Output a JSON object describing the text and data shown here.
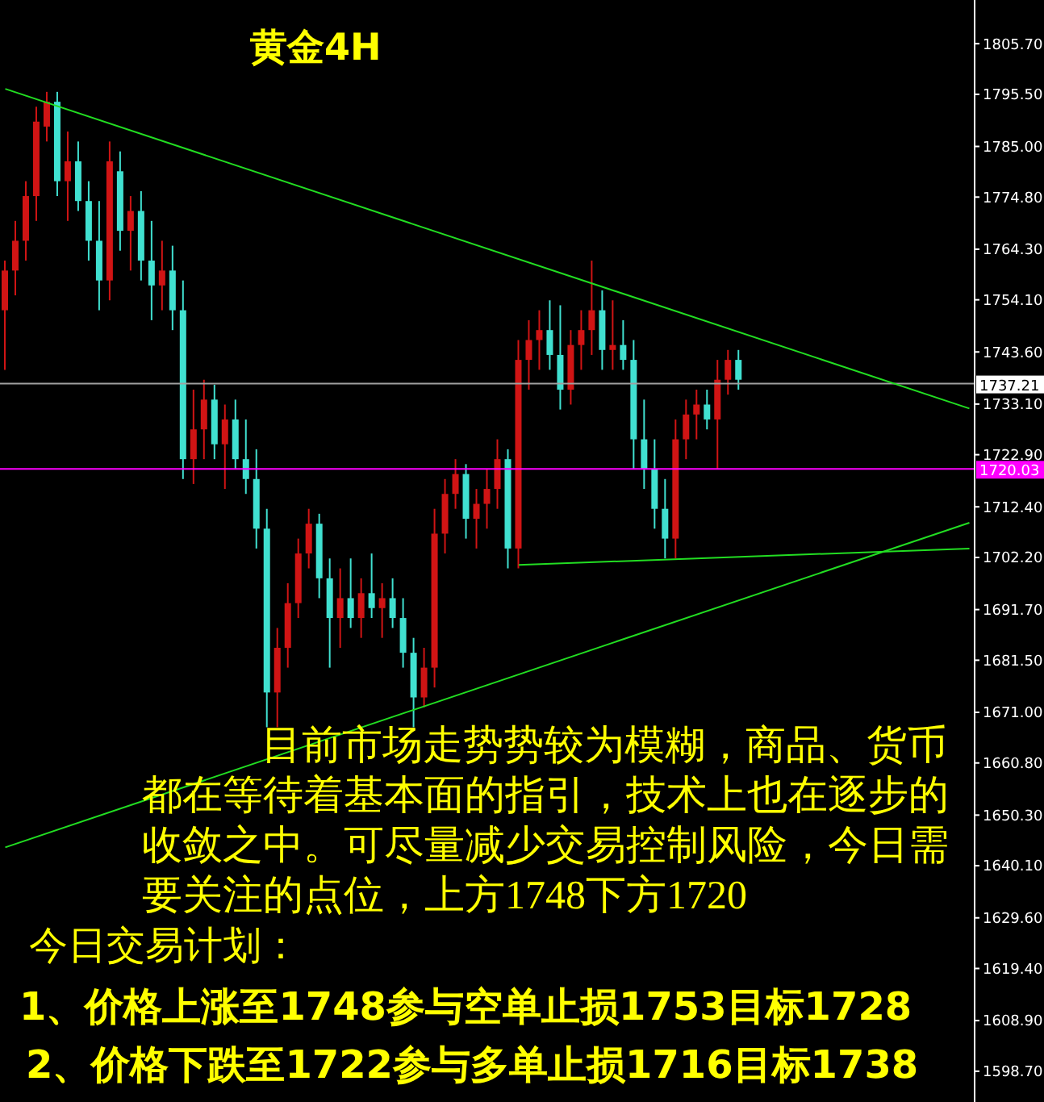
{
  "chart_data": {
    "type": "candlestick",
    "title": "黄金4H",
    "categories": [
      null,
      null,
      null,
      null,
      null,
      null,
      null,
      null,
      null,
      null,
      null,
      null,
      null,
      null,
      null,
      null,
      null,
      null,
      null,
      null,
      null,
      null,
      null,
      null,
      null,
      null,
      null,
      null,
      null,
      null,
      null,
      null,
      null,
      null,
      null,
      null,
      null,
      null,
      null,
      null,
      null,
      null,
      null,
      null,
      null,
      null,
      null,
      null,
      null,
      null,
      null,
      null,
      null,
      null,
      null,
      null,
      null,
      null,
      null,
      null,
      null,
      null,
      null,
      null,
      null,
      null,
      null,
      null,
      null,
      null,
      null,
      null,
      null,
      null,
      null,
      null,
      null,
      null,
      null,
      null,
      null,
      null,
      null,
      null,
      null,
      null,
      null,
      null,
      null,
      null,
      null,
      null,
      null
    ],
    "ohlc": [
      [
        1752,
        1762,
        1740,
        1760
      ],
      [
        1760,
        1770,
        1755,
        1766
      ],
      [
        1766,
        1778,
        1762,
        1775
      ],
      [
        1775,
        1793,
        1770,
        1790
      ],
      [
        1789,
        1796,
        1786,
        1794
      ],
      [
        1794,
        1796,
        1775,
        1778
      ],
      [
        1778,
        1788,
        1770,
        1782
      ],
      [
        1782,
        1786,
        1772,
        1774
      ],
      [
        1774,
        1778,
        1762,
        1766
      ],
      [
        1766,
        1774,
        1752,
        1758
      ],
      [
        1758,
        1786,
        1754,
        1782
      ],
      [
        1780,
        1784,
        1764,
        1768
      ],
      [
        1768,
        1775,
        1760,
        1772
      ],
      [
        1772,
        1776,
        1758,
        1762
      ],
      [
        1762,
        1770,
        1750,
        1757
      ],
      [
        1757,
        1766,
        1752,
        1760
      ],
      [
        1760,
        1765,
        1748,
        1752
      ],
      [
        1752,
        1758,
        1718,
        1722
      ],
      [
        1722,
        1736,
        1717,
        1728
      ],
      [
        1728,
        1738,
        1722,
        1734
      ],
      [
        1734,
        1737,
        1722,
        1725
      ],
      [
        1725,
        1733,
        1716,
        1730
      ],
      [
        1730,
        1734,
        1720,
        1722
      ],
      [
        1722,
        1730,
        1715,
        1718
      ],
      [
        1718,
        1724,
        1704,
        1708
      ],
      [
        1708,
        1712,
        1668,
        1675
      ],
      [
        1675,
        1688,
        1668,
        1684
      ],
      [
        1684,
        1697,
        1680,
        1693
      ],
      [
        1693,
        1706,
        1690,
        1703
      ],
      [
        1703,
        1712,
        1700,
        1709
      ],
      [
        1709,
        1711,
        1694,
        1698
      ],
      [
        1698,
        1702,
        1680,
        1690
      ],
      [
        1690,
        1700,
        1684,
        1694
      ],
      [
        1694,
        1702,
        1688,
        1690
      ],
      [
        1690,
        1698,
        1686,
        1695
      ],
      [
        1695,
        1703,
        1690,
        1692
      ],
      [
        1692,
        1697,
        1686,
        1694
      ],
      [
        1694,
        1698,
        1688,
        1690
      ],
      [
        1690,
        1694,
        1680,
        1683
      ],
      [
        1683,
        1686,
        1668,
        1674
      ],
      [
        1674,
        1684,
        1672,
        1680
      ],
      [
        1680,
        1712,
        1676,
        1707
      ],
      [
        1707,
        1718,
        1703,
        1715
      ],
      [
        1715,
        1722,
        1712,
        1719
      ],
      [
        1719,
        1721,
        1706,
        1710
      ],
      [
        1710,
        1716,
        1704,
        1713
      ],
      [
        1713,
        1720,
        1708,
        1716
      ],
      [
        1716,
        1726,
        1712,
        1722
      ],
      [
        1722,
        1724,
        1700,
        1704
      ],
      [
        1704,
        1746,
        1700,
        1742
      ],
      [
        1742,
        1750,
        1736,
        1746
      ],
      [
        1746,
        1752,
        1740,
        1748
      ],
      [
        1748,
        1754,
        1740,
        1743
      ],
      [
        1743,
        1753,
        1732,
        1736
      ],
      [
        1736,
        1748,
        1733,
        1745
      ],
      [
        1745,
        1752,
        1740,
        1748
      ],
      [
        1748,
        1762,
        1743,
        1752
      ],
      [
        1752,
        1756,
        1740,
        1744
      ],
      [
        1744,
        1754,
        1740,
        1745
      ],
      [
        1745,
        1750,
        1740,
        1742
      ],
      [
        1742,
        1746,
        1720,
        1726
      ],
      [
        1726,
        1734,
        1716,
        1720
      ],
      [
        1720,
        1726,
        1708,
        1712
      ],
      [
        1712,
        1718,
        1702,
        1706
      ],
      [
        1706,
        1730,
        1702,
        1726
      ],
      [
        1726,
        1734,
        1722,
        1731
      ],
      [
        1731,
        1736,
        1726,
        1733
      ],
      [
        1733,
        1736,
        1728,
        1730
      ],
      [
        1730,
        1742,
        1720,
        1738
      ],
      [
        1738,
        1744,
        1735,
        1742
      ],
      [
        1742,
        1744,
        1736,
        1738
      ],
      null,
      null,
      null,
      null,
      null,
      null,
      null,
      null,
      null,
      null,
      null,
      null,
      null,
      null,
      null,
      null,
      null,
      null,
      null,
      null,
      null,
      null
    ],
    "colors": [
      "#d01414",
      "#d01414",
      "#d01414",
      "#d01414",
      "#d01414",
      "#40e0d0",
      "#d01414",
      "#40e0d0",
      "#40e0d0",
      "#40e0d0",
      "#d01414",
      "#40e0d0",
      "#d01414",
      "#40e0d0",
      "#40e0d0",
      "#d01414",
      "#40e0d0",
      "#40e0d0",
      "#d01414",
      "#d01414",
      "#40e0d0",
      "#d01414",
      "#40e0d0",
      "#40e0d0",
      "#40e0d0",
      "#40e0d0",
      "#d01414",
      "#d01414",
      "#d01414",
      "#d01414",
      "#40e0d0",
      "#40e0d0",
      "#d01414",
      "#40e0d0",
      "#d01414",
      "#40e0d0",
      "#d01414",
      "#40e0d0",
      "#40e0d0",
      "#40e0d0",
      "#d01414",
      "#d01414",
      "#d01414",
      "#d01414",
      "#40e0d0",
      "#d01414",
      "#d01414",
      "#d01414",
      "#40e0d0",
      "#d01414",
      "#d01414",
      "#d01414",
      "#40e0d0",
      "#40e0d0",
      "#d01414",
      "#d01414",
      "#d01414",
      "#40e0d0",
      "#d01414",
      "#40e0d0",
      "#40e0d0",
      "#40e0d0",
      "#40e0d0",
      "#40e0d0",
      "#d01414",
      "#d01414",
      "#d01414",
      "#40e0d0",
      "#d01414",
      "#d01414",
      "#40e0d0",
      null,
      null,
      null,
      null,
      null,
      null,
      null,
      null,
      null,
      null,
      null,
      null,
      null,
      null,
      null,
      null,
      null,
      null,
      null,
      null,
      null,
      null
    ],
    "series": [
      {
        "type": "line",
        "values": [
          1796.6,
          null,
          null,
          null,
          null,
          null,
          null,
          null,
          null,
          null,
          null,
          null,
          null,
          null,
          null,
          null,
          null,
          null,
          null,
          null,
          null,
          null,
          null,
          null,
          null,
          null,
          null,
          null,
          null,
          null,
          null,
          null,
          null,
          null,
          null,
          null,
          null,
          null,
          null,
          null,
          null,
          null,
          null,
          null,
          null,
          null,
          null,
          null,
          null,
          null,
          null,
          null,
          null,
          null,
          null,
          null,
          null,
          null,
          null,
          null,
          null,
          null,
          null,
          null,
          null,
          null,
          null,
          null,
          null,
          null,
          null,
          null,
          null,
          null,
          null,
          null,
          null,
          null,
          null,
          null,
          null,
          null,
          null,
          null,
          null,
          null,
          null,
          null,
          null,
          null,
          null,
          null,
          1732.2
        ],
        "color": "#22dd22"
      },
      {
        "type": "line",
        "values": [
          1643.8,
          null,
          null,
          null,
          null,
          null,
          null,
          null,
          null,
          null,
          null,
          null,
          null,
          null,
          null,
          null,
          null,
          null,
          null,
          null,
          null,
          null,
          null,
          null,
          null,
          null,
          null,
          null,
          null,
          null,
          null,
          null,
          null,
          null,
          null,
          null,
          null,
          null,
          null,
          null,
          null,
          null,
          null,
          null,
          null,
          null,
          null,
          null,
          null,
          null,
          null,
          null,
          null,
          null,
          null,
          null,
          null,
          null,
          null,
          null,
          null,
          null,
          null,
          null,
          null,
          null,
          null,
          null,
          null,
          null,
          null,
          null,
          null,
          null,
          null,
          null,
          null,
          null,
          null,
          null,
          null,
          null,
          null,
          null,
          null,
          null,
          null,
          null,
          null,
          null,
          null,
          null,
          1709.2
        ],
        "color": "#22dd22"
      },
      {
        "type": "line",
        "values": [
          null,
          null,
          null,
          null,
          null,
          null,
          null,
          null,
          null,
          null,
          null,
          null,
          null,
          null,
          null,
          null,
          null,
          null,
          null,
          null,
          null,
          null,
          null,
          null,
          null,
          null,
          null,
          null,
          null,
          null,
          null,
          null,
          null,
          null,
          null,
          null,
          null,
          null,
          null,
          null,
          null,
          null,
          null,
          null,
          null,
          null,
          null,
          null,
          null,
          1700.7,
          null,
          null,
          null,
          null,
          null,
          null,
          null,
          null,
          null,
          null,
          null,
          null,
          null,
          null,
          null,
          null,
          null,
          null,
          null,
          null,
          null,
          null,
          null,
          null,
          null,
          null,
          null,
          null,
          null,
          null,
          null,
          null,
          null,
          null,
          null,
          null,
          null,
          null,
          null,
          null,
          null,
          null,
          1704.0
        ],
        "color": "#22dd22"
      }
    ],
    "ylim": [
      1592.5,
      1814.5
    ],
    "yticks": [
      {
        "value": 1805.7,
        "label": "1805.70"
      },
      {
        "value": 1795.5,
        "label": "1795.50"
      },
      {
        "value": 1785,
        "label": "1785.00"
      },
      {
        "value": 1774.8,
        "label": "1774.80"
      },
      {
        "value": 1764.3,
        "label": "1764.30"
      },
      {
        "value": 1754.1,
        "label": "1754.10"
      },
      {
        "value": 1743.6,
        "label": "1743.60"
      },
      {
        "value": 1733.1,
        "label": "1733.10"
      },
      {
        "value": 1722.9,
        "label": "1722.90"
      },
      {
        "value": 1712.4,
        "label": "1712.40"
      },
      {
        "value": 1702.2,
        "label": "1702.20"
      },
      {
        "value": 1691.7,
        "label": "1691.70"
      },
      {
        "value": 1681.5,
        "label": "1681.50"
      },
      {
        "value": 1671,
        "label": "1671.00"
      },
      {
        "value": 1660.8,
        "label": "1660.80"
      },
      {
        "value": 1650.3,
        "label": "1650.30"
      },
      {
        "value": 1640.1,
        "label": "1640.10"
      },
      {
        "value": 1629.6,
        "label": "1629.60"
      },
      {
        "value": 1619.4,
        "label": "1619.40"
      },
      {
        "value": 1608.9,
        "label": "1608.90"
      },
      {
        "value": 1598.7,
        "label": "1598.70"
      }
    ],
    "ref_lines": [
      {
        "axis": "y",
        "value": 1737.21,
        "label": "1737.21",
        "color": "#a0a0a0"
      },
      {
        "axis": "y",
        "value": 1720.03,
        "label": "1720.03",
        "color": "#ff00ff"
      }
    ],
    "grid": false,
    "legend": false,
    "annotations": [
      "目前市场走势势较为模糊，商品、货币都在等待着基本面的指引，技术上也在逐步的收敛之中。可尽量减少交易控制风险，今日需要关注的点位，上方1748下方1720",
      "今日交易计划：",
      "1、价格上涨至1748参与空单止损1753目标1728",
      "2、价格下跌至1722参与多单止损1716目标1738"
    ]
  }
}
